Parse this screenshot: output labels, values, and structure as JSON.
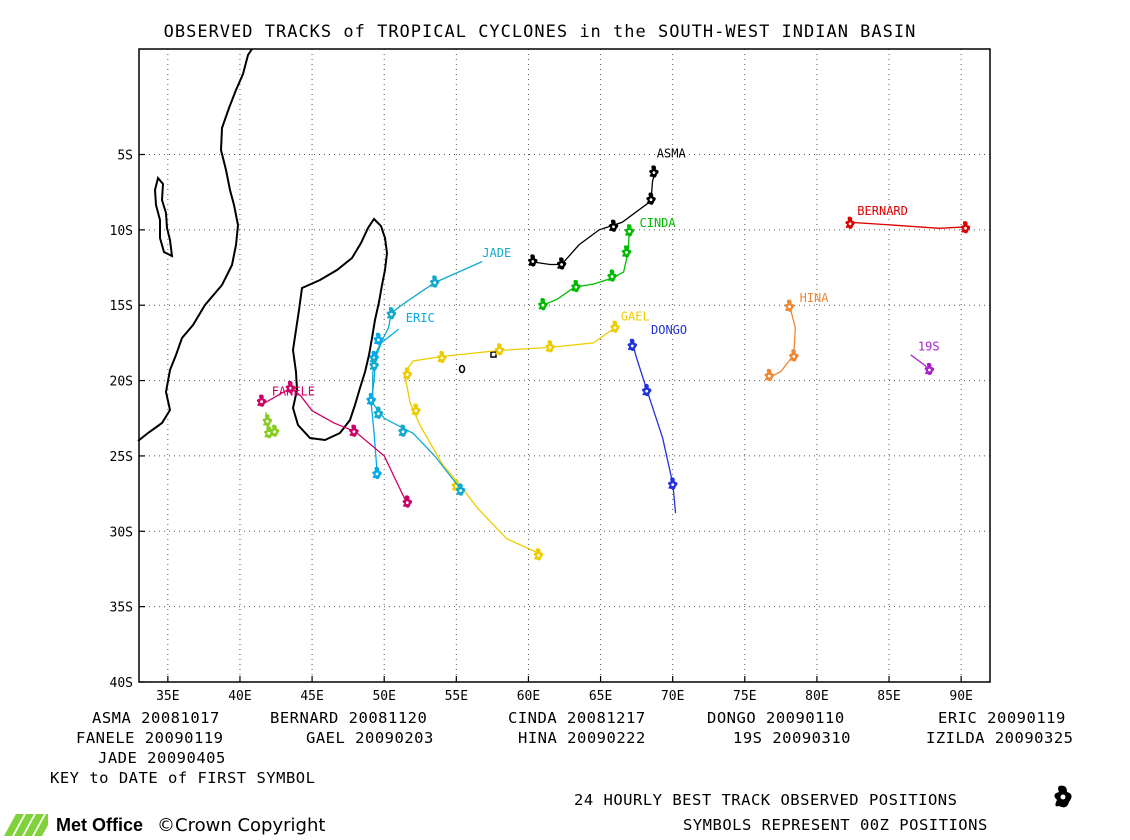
{
  "title": "OBSERVED TRACKS of TROPICAL CYCLONES in the SOUTH-WEST INDIAN BASIN",
  "axes": {
    "lon_ticks": [
      "35E",
      "40E",
      "45E",
      "50E",
      "55E",
      "60E",
      "65E",
      "70E",
      "75E",
      "80E",
      "85E",
      "90E"
    ],
    "lat_ticks": [
      "5S",
      "10S",
      "15S",
      "20S",
      "25S",
      "30S",
      "35S",
      "40S"
    ],
    "lon_range": [
      33,
      92
    ],
    "lat_range": [
      -2,
      40
    ]
  },
  "storms": [
    {
      "name": "ASMA",
      "label": "ASMA",
      "color": "#000000",
      "label_pos": [
        68.9,
        5.2
      ],
      "track": [
        [
          60.1,
          12.1
        ],
        [
          61.5,
          12.3
        ],
        [
          62.3,
          12.3
        ],
        [
          63.5,
          11.0
        ],
        [
          64.9,
          10.0
        ],
        [
          66.5,
          9.5
        ],
        [
          67.9,
          8.5
        ],
        [
          68.5,
          8.1
        ],
        [
          68.6,
          6.8
        ],
        [
          68.8,
          6.0
        ]
      ],
      "symbols": [
        [
          60.3,
          12.1
        ],
        [
          62.3,
          12.3
        ],
        [
          65.9,
          9.8
        ],
        [
          68.5,
          8.0
        ],
        [
          68.7,
          6.2
        ]
      ]
    },
    {
      "name": "BERNARD",
      "label": "BERNARD",
      "color": "#dd0000",
      "label_pos": [
        82.8,
        9.0
      ],
      "track": [
        [
          82.3,
          9.5
        ],
        [
          85.5,
          9.7
        ],
        [
          88.5,
          9.9
        ],
        [
          90.4,
          9.8
        ]
      ],
      "symbols": [
        [
          82.3,
          9.6
        ],
        [
          90.3,
          9.9
        ]
      ]
    },
    {
      "name": "CINDA",
      "label": "CINDA",
      "color": "#00bb00",
      "label_pos": [
        67.7,
        9.8
      ],
      "track": [
        [
          61.0,
          15.0
        ],
        [
          62.0,
          14.6
        ],
        [
          63.2,
          13.8
        ],
        [
          64.5,
          13.6
        ],
        [
          65.8,
          13.2
        ],
        [
          66.6,
          12.8
        ],
        [
          66.9,
          11.5
        ],
        [
          67.0,
          10.0
        ]
      ],
      "symbols": [
        [
          61.0,
          15.0
        ],
        [
          63.3,
          13.8
        ],
        [
          65.8,
          13.1
        ],
        [
          66.8,
          11.5
        ],
        [
          67.0,
          10.1
        ]
      ]
    },
    {
      "name": "DONGO",
      "label": "DONGO",
      "color": "#2233dd",
      "label_pos": [
        68.5,
        16.9
      ],
      "track": [
        [
          67.2,
          17.5
        ],
        [
          67.5,
          18.5
        ],
        [
          68.2,
          20.6
        ],
        [
          69.3,
          23.8
        ],
        [
          70.0,
          26.8
        ],
        [
          70.2,
          28.8
        ]
      ],
      "symbols": [
        [
          67.2,
          17.7
        ],
        [
          68.2,
          20.7
        ],
        [
          70.0,
          26.9
        ]
      ]
    },
    {
      "name": "ERIC",
      "label": "ERIC",
      "color": "#00aaee",
      "label_pos": [
        51.5,
        16.1
      ],
      "track": [
        [
          51.0,
          16.6
        ],
        [
          49.8,
          17.5
        ],
        [
          49.4,
          18.5
        ],
        [
          49.3,
          20.0
        ],
        [
          49.1,
          21.5
        ],
        [
          49.3,
          23.5
        ],
        [
          49.5,
          26.0
        ]
      ],
      "symbols": [
        [
          49.6,
          17.3
        ],
        [
          49.3,
          18.5
        ],
        [
          49.1,
          21.3
        ],
        [
          49.5,
          26.2
        ]
      ]
    },
    {
      "name": "FANELE",
      "label": "FANELE",
      "color": "#cc0066",
      "label_pos": [
        42.2,
        21.0
      ],
      "track": [
        [
          41.5,
          21.6
        ],
        [
          43.5,
          20.5
        ],
        [
          44.2,
          21.0
        ],
        [
          45.0,
          22.0
        ],
        [
          46.5,
          22.8
        ],
        [
          48.0,
          23.4
        ],
        [
          50.0,
          25.0
        ],
        [
          51.5,
          28.0
        ]
      ],
      "symbols": [
        [
          41.5,
          21.4
        ],
        [
          43.5,
          20.5
        ],
        [
          47.9,
          23.4
        ],
        [
          51.6,
          28.1
        ]
      ]
    },
    {
      "name": "GAEL",
      "label": "GAEL",
      "color": "#eecc00",
      "label_pos": [
        66.4,
        16.0
      ],
      "track": [
        [
          66.0,
          16.5
        ],
        [
          64.5,
          17.5
        ],
        [
          61.5,
          17.8
        ],
        [
          58.0,
          18.0
        ],
        [
          54.0,
          18.4
        ],
        [
          52.0,
          18.7
        ],
        [
          51.4,
          19.5
        ],
        [
          51.8,
          21.5
        ],
        [
          52.5,
          23.0
        ],
        [
          54.0,
          25.5
        ],
        [
          55.3,
          27.0
        ],
        [
          56.5,
          28.5
        ],
        [
          58.5,
          30.5
        ],
        [
          60.8,
          31.5
        ]
      ],
      "symbols": [
        [
          66.0,
          16.5
        ],
        [
          61.5,
          17.8
        ],
        [
          58.0,
          18.0
        ],
        [
          54.0,
          18.5
        ],
        [
          51.6,
          19.6
        ],
        [
          52.2,
          22.0
        ],
        [
          55.0,
          27.0
        ],
        [
          60.7,
          31.6
        ]
      ]
    },
    {
      "name": "HINA",
      "label": "HINA",
      "color": "#ee8833",
      "label_pos": [
        78.8,
        14.8
      ],
      "track": [
        [
          78.1,
          15.0
        ],
        [
          78.5,
          16.5
        ],
        [
          78.4,
          18.3
        ],
        [
          77.5,
          19.4
        ],
        [
          76.7,
          19.8
        ]
      ],
      "symbols": [
        [
          78.1,
          15.1
        ],
        [
          78.4,
          18.4
        ],
        [
          76.7,
          19.7
        ]
      ]
    },
    {
      "name": "19S",
      "label": "19S",
      "color": "#aa22cc",
      "label_pos": [
        87.0,
        18.0
      ],
      "track": [
        [
          86.5,
          18.3
        ],
        [
          87.5,
          19.0
        ],
        [
          87.8,
          19.4
        ]
      ],
      "symbols": [
        [
          87.8,
          19.3
        ]
      ]
    },
    {
      "name": "IZILDA",
      "label": "",
      "color": "#88cc22",
      "label_pos": [
        0,
        0
      ],
      "track": [
        [
          41.8,
          22.1
        ],
        [
          41.9,
          22.8
        ],
        [
          42.1,
          23.4
        ],
        [
          42.4,
          23.5
        ]
      ],
      "symbols": [
        [
          41.9,
          22.7
        ],
        [
          42.0,
          23.5
        ],
        [
          42.4,
          23.4
        ]
      ]
    },
    {
      "name": "JADE",
      "label": "JADE",
      "color": "#11aacc",
      "label_pos": [
        56.8,
        11.8
      ],
      "track": [
        [
          56.8,
          12.1
        ],
        [
          53.5,
          13.5
        ],
        [
          51.5,
          14.8
        ],
        [
          50.5,
          15.5
        ],
        [
          50.3,
          16.5
        ],
        [
          49.5,
          18.0
        ],
        [
          49.2,
          19.5
        ],
        [
          49.2,
          21.5
        ],
        [
          50.0,
          22.5
        ],
        [
          51.0,
          23.0
        ],
        [
          52.0,
          23.5
        ],
        [
          53.5,
          25.0
        ],
        [
          55.3,
          27.2
        ]
      ],
      "symbols": [
        [
          53.5,
          13.5
        ],
        [
          50.5,
          15.6
        ],
        [
          49.3,
          19.0
        ],
        [
          49.6,
          22.2
        ],
        [
          51.3,
          23.4
        ],
        [
          55.3,
          27.3
        ]
      ]
    }
  ],
  "key": {
    "rows": [
      [
        "ASMA 20081017",
        "BERNARD 20081120",
        "CINDA 20081217",
        "DONGO 20090110",
        "ERIC 20090119"
      ],
      [
        "FANELE 20090119",
        "GAEL 20090203",
        "HINA 20090222",
        "19S 20090310",
        "IZILDA 20090325"
      ],
      [
        "JADE 20090405"
      ]
    ],
    "note": "KEY to DATE of FIRST SYMBOL"
  },
  "footer": {
    "line1": "24 HOURLY BEST TRACK OBSERVED POSITIONS",
    "line2": "SYMBOLS REPRESENT 00Z POSITIONS",
    "brand": "Met Office",
    "copyright": "Crown Copyright",
    "copyright_symbol": "©"
  }
}
